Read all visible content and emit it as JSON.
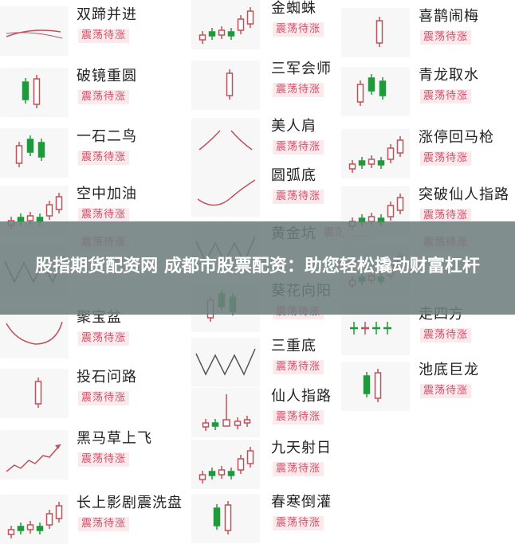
{
  "badge_label": "震荡待涨",
  "colors": {
    "up": "#c0505a",
    "down": "#1e9a3a",
    "badge_text": "#d0506a",
    "badge_bg": "#fbe9ec"
  },
  "overlay": {
    "headline": "股指期货配资网 成都市股票配资：助您轻松撬动财富杠杆"
  },
  "columns": [
    {
      "items": [
        {
          "title": "双蹄并进",
          "thumb": "lines"
        },
        {
          "title": "破镜重圆",
          "thumb": "candles-a"
        },
        {
          "title": "一石二鸟",
          "thumb": "candles-b"
        },
        {
          "title": "空中加油",
          "thumb": "candles-rise"
        },
        {
          "title": "",
          "thumb": "zigzag"
        },
        {
          "title": "聚宝盆",
          "thumb": "bowl"
        },
        {
          "title": "投石问路",
          "thumb": "candle-single"
        },
        {
          "title": "黑马草上飞",
          "thumb": "arrow"
        },
        {
          "title": "长上影剧震洗盘",
          "thumb": "candles-rise"
        }
      ]
    },
    {
      "items": [
        {
          "title": "金蜘蛛",
          "thumb": "candles-rise"
        },
        {
          "title": "三军会师",
          "thumb": "candle-single"
        },
        {
          "title": "美人肩",
          "thumb": "shoulders"
        },
        {
          "title": "圆弧底",
          "thumb": "arc"
        },
        {
          "title": "黄金坑",
          "thumb": "zigzag"
        },
        {
          "title": "葵花向阳",
          "thumb": "candles-b"
        },
        {
          "title": "三重底",
          "thumb": "zigzag"
        },
        {
          "title": "仙人指路",
          "thumb": "needle"
        },
        {
          "title": "九天射日",
          "thumb": "candles-rise"
        },
        {
          "title": "春寒倒灌",
          "thumb": "candles-a"
        }
      ]
    },
    {
      "items": [
        {
          "title": "喜鹊闹梅",
          "thumb": "candle-single"
        },
        {
          "title": "青龙取水",
          "thumb": "candles-b"
        },
        {
          "title": "涨停回马枪",
          "thumb": "candles-rise"
        },
        {
          "title": "突破仙人指路",
          "thumb": "candles-rise"
        },
        {
          "title": "",
          "thumb": "candles-rise"
        },
        {
          "title": "走四方",
          "thumb": "crosses"
        },
        {
          "title": "池底巨龙",
          "thumb": "candles-a"
        }
      ]
    }
  ]
}
